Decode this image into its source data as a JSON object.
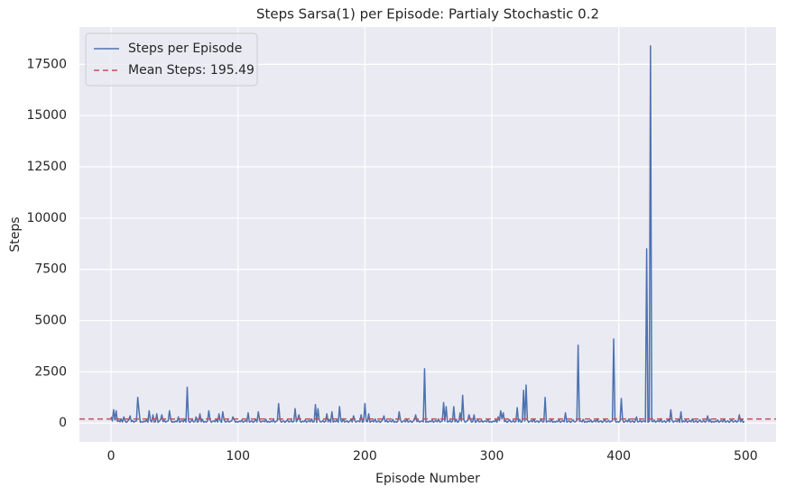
{
  "chart_data": {
    "type": "line",
    "title": "Steps Sarsa(1) per Episode: Partialy Stochastic 0.2",
    "x_label": "Episode Number",
    "y_label": "Steps",
    "xlim": [
      -24.95,
      523.95
    ],
    "xticks": [
      0,
      100,
      200,
      300,
      400,
      500
    ],
    "ylim": [
      -920,
      19320
    ],
    "yticks": [
      0,
      2500,
      5000,
      7500,
      10000,
      12500,
      15000,
      17500
    ],
    "grid": true,
    "legend": "upper left",
    "series": [
      {
        "name": "Steps per Episode",
        "color": "#4c72b0",
        "values": [
          300,
          95,
          650,
          150,
          600,
          80,
          120,
          55,
          200,
          45,
          300,
          110,
          30,
          90,
          160,
          350,
          65,
          130,
          40,
          85,
          100,
          1250,
          600,
          35,
          75,
          40,
          95,
          60,
          150,
          35,
          600,
          120,
          55,
          400,
          45,
          70,
          450,
          30,
          90,
          160,
          400,
          65,
          130,
          40,
          85,
          100,
          600,
          180,
          35,
          75,
          40,
          95,
          60,
          300,
          35,
          80,
          120,
          55,
          200,
          45,
          1750,
          110,
          30,
          90,
          160,
          50,
          65,
          300,
          40,
          85,
          450,
          55,
          180,
          35,
          75,
          40,
          95,
          600,
          150,
          35,
          80,
          120,
          55,
          200,
          45,
          450,
          110,
          30,
          550,
          160,
          50,
          65,
          130,
          40,
          85,
          100,
          300,
          180,
          35,
          75,
          40,
          95,
          60,
          150,
          35,
          80,
          120,
          55,
          500,
          45,
          70,
          110,
          30,
          90,
          160,
          50,
          550,
          130,
          40,
          85,
          100,
          55,
          180,
          35,
          75,
          40,
          95,
          60,
          150,
          35,
          80,
          120,
          950,
          200,
          45,
          70,
          110,
          30,
          90,
          160,
          50,
          65,
          130,
          40,
          85,
          700,
          55,
          180,
          400,
          75,
          40,
          95,
          60,
          150,
          35,
          80,
          120,
          55,
          200,
          45,
          70,
          900,
          30,
          700,
          160,
          50,
          65,
          130,
          40,
          85,
          450,
          55,
          180,
          35,
          550,
          40,
          95,
          60,
          150,
          35,
          800,
          120,
          55,
          200,
          45,
          70,
          110,
          30,
          90,
          160,
          50,
          350,
          130,
          40,
          85,
          100,
          55,
          400,
          35,
          75,
          950,
          95,
          60,
          450,
          35,
          80,
          120,
          55,
          200,
          45,
          70,
          110,
          30,
          90,
          160,
          350,
          65,
          130,
          40,
          85,
          100,
          55,
          180,
          35,
          75,
          40,
          95,
          550,
          150,
          35,
          80,
          120,
          55,
          200,
          45,
          70,
          110,
          30,
          90,
          160,
          400,
          65,
          130,
          40,
          85,
          100,
          55,
          2650,
          35,
          75,
          40,
          95,
          60,
          150,
          35,
          80,
          120,
          55,
          200,
          45,
          70,
          110,
          1000,
          90,
          800,
          50,
          65,
          130,
          40,
          85,
          800,
          55,
          180,
          35,
          75,
          500,
          95,
          1350,
          150,
          35,
          80,
          120,
          400,
          200,
          45,
          70,
          400,
          30,
          90,
          160,
          50,
          65,
          130,
          40,
          85,
          100,
          55,
          180,
          35,
          75,
          40,
          95,
          60,
          150,
          35,
          300,
          120,
          600,
          200,
          500,
          70,
          110,
          30,
          90,
          160,
          50,
          65,
          130,
          40,
          85,
          750,
          55,
          180,
          35,
          75,
          1600,
          95,
          1850,
          150,
          35,
          80,
          120,
          55,
          200,
          45,
          70,
          110,
          30,
          90,
          160,
          50,
          65,
          1250,
          40,
          85,
          100,
          55,
          180,
          35,
          75,
          40,
          95,
          60,
          150,
          35,
          80,
          120,
          55,
          500,
          45,
          70,
          110,
          30,
          90,
          160,
          50,
          65,
          130,
          3800,
          85,
          100,
          55,
          180,
          35,
          75,
          40,
          95,
          60,
          150,
          35,
          80,
          120,
          55,
          200,
          45,
          70,
          110,
          30,
          90,
          160,
          50,
          65,
          130,
          40,
          85,
          100,
          4100,
          180,
          35,
          75,
          40,
          95,
          1200,
          150,
          35,
          80,
          120,
          55,
          200,
          45,
          70,
          110,
          30,
          90,
          300,
          50,
          65,
          130,
          40,
          85,
          100,
          55,
          8500,
          35,
          75,
          18400,
          95,
          60,
          150,
          35,
          80,
          120,
          55,
          200,
          45,
          70,
          110,
          30,
          90,
          160,
          50,
          650,
          130,
          40,
          85,
          100,
          55,
          180,
          35,
          550,
          40,
          95,
          60,
          150,
          35,
          80,
          120,
          55,
          200,
          45,
          70,
          110,
          30,
          90,
          160,
          50,
          65,
          130,
          40,
          85,
          350,
          55,
          180,
          35,
          75,
          40,
          95,
          60,
          150,
          35,
          80,
          120,
          55,
          200,
          45,
          70,
          110,
          30,
          90,
          160,
          50,
          65,
          130,
          40,
          85,
          400,
          55,
          180,
          35,
          75
        ]
      }
    ],
    "hlines": [
      {
        "name": "Mean Steps: 195.49",
        "value": 195.49,
        "color": "#c44e52"
      }
    ]
  }
}
